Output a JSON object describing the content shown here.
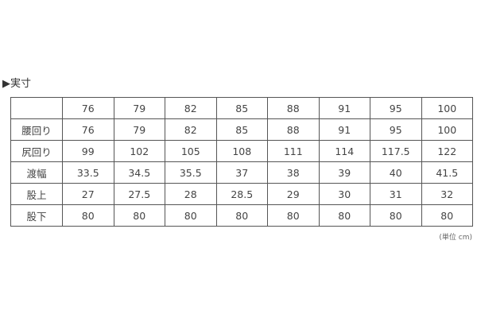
{
  "title": "▶実寸",
  "table": {
    "header": [
      "",
      "76",
      "79",
      "82",
      "85",
      "88",
      "91",
      "95",
      "100"
    ],
    "rows": [
      [
        "腰回り",
        "76",
        "79",
        "82",
        "85",
        "88",
        "91",
        "95",
        "100"
      ],
      [
        "尻回り",
        "99",
        "102",
        "105",
        "108",
        "111",
        "114",
        "117.5",
        "122"
      ],
      [
        "渡幅",
        "33.5",
        "34.5",
        "35.5",
        "37",
        "38",
        "39",
        "40",
        "41.5"
      ],
      [
        "股上",
        "27",
        "27.5",
        "28",
        "28.5",
        "29",
        "30",
        "31",
        "32"
      ],
      [
        "股下",
        "80",
        "80",
        "80",
        "80",
        "80",
        "80",
        "80",
        "80"
      ]
    ]
  },
  "unit": "(単位 cm)"
}
